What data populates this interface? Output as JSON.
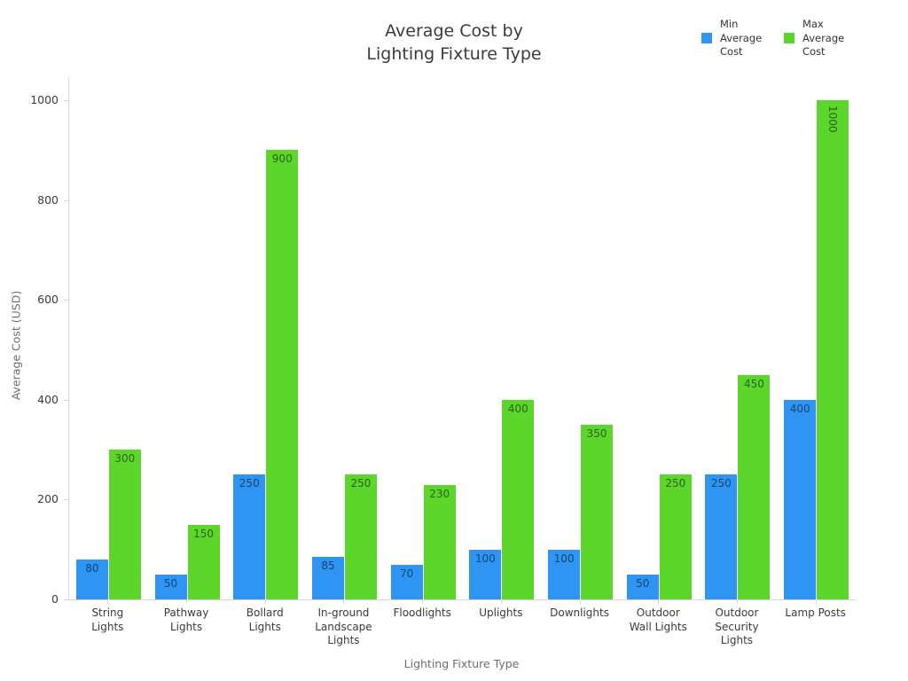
{
  "chart_data": {
    "type": "bar",
    "title": "Average Cost by Lighting Fixture Type",
    "title_lines": [
      "Average Cost by",
      "Lighting Fixture Type"
    ],
    "xlabel": "Lighting Fixture Type",
    "ylabel": "Average Cost (USD)",
    "categories": [
      "String Lights",
      "Pathway Lights",
      "Bollard Lights",
      "In-ground Landscape Lights",
      "Floodlights",
      "Uplights",
      "Downlights",
      "Outdoor Wall Lights",
      "Outdoor Security Lights",
      "Lamp Posts"
    ],
    "series": [
      {
        "name": "Min Average Cost",
        "color": "#2F95F3",
        "values": [
          80,
          50,
          250,
          85,
          70,
          100,
          100,
          50,
          250,
          400
        ]
      },
      {
        "name": "Max Average Cost",
        "color": "#5DD62C",
        "values": [
          300,
          150,
          900,
          250,
          230,
          400,
          350,
          250,
          450,
          1000
        ]
      }
    ],
    "ylim": [
      0,
      1000
    ],
    "yticks": [
      0,
      200,
      400,
      600,
      800,
      1000
    ],
    "bar_labels_visible": true,
    "legend_position": "top-right",
    "grid": false,
    "colors": {
      "axis_line": "#d8d8d8",
      "tick_text": "#3b3b3b",
      "axis_title_text": "#6e6e6e",
      "title_text": "#3b3b3b"
    }
  }
}
